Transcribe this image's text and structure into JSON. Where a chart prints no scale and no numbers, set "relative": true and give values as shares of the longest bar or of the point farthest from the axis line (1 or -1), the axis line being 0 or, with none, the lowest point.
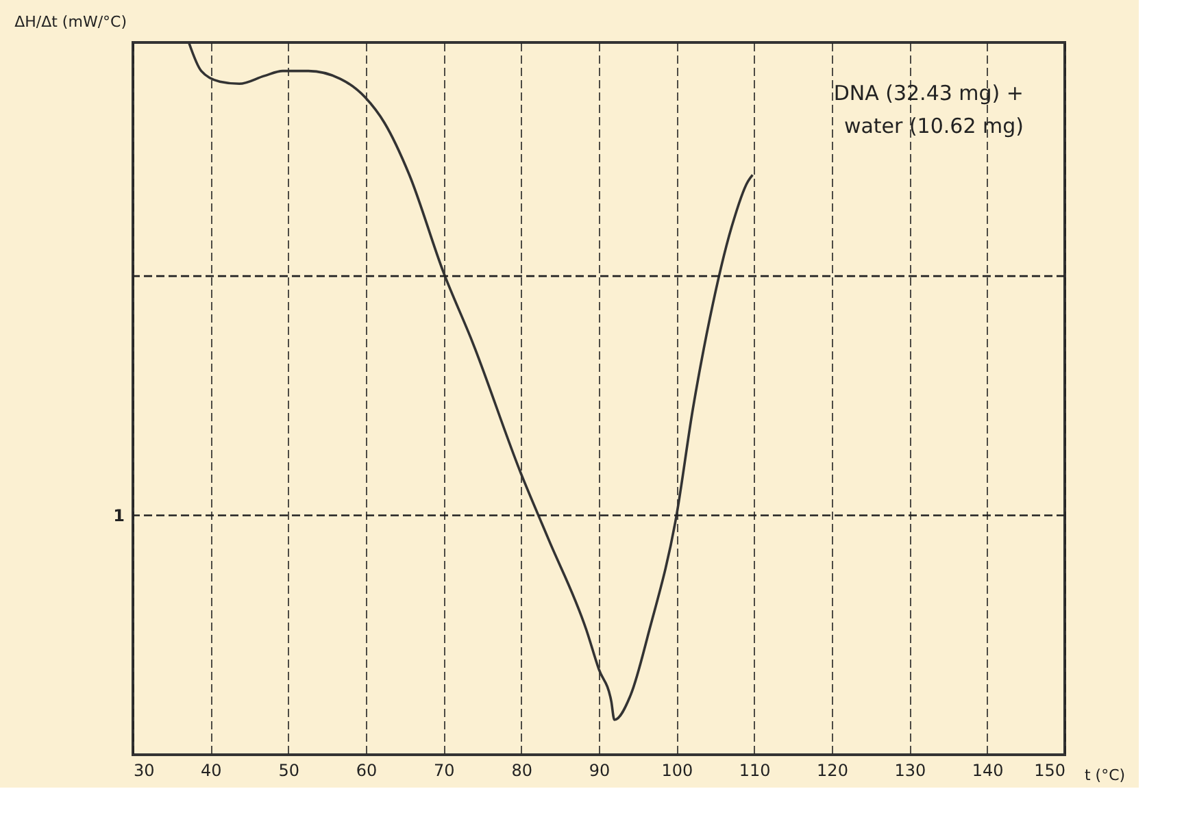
{
  "chart_data": {
    "type": "line",
    "relative": true,
    "xlabel": "t (°C)",
    "ylabel": "ΔH/Δt (mW/°C)",
    "annotations": [
      "DNA (32.43 mg) +",
      "water (10.62 mg)",
      "1"
    ],
    "xlim": [
      30,
      150
    ],
    "xticks": [
      30,
      40,
      50,
      60,
      70,
      80,
      90,
      100,
      110,
      120,
      130,
      140,
      150
    ],
    "grid": "x",
    "ref_lines": [
      {
        "axis": "y",
        "value": 0.672,
        "label": null,
        "line_style": "dashed"
      },
      {
        "axis": "y",
        "value": 0.336,
        "label": null,
        "line_style": "dashed"
      }
    ],
    "series": [
      {
        "color": "#333333",
        "x": [
          37.2,
          38.8,
          41.2,
          43.7,
          46.9,
          49.3,
          52.6,
          56.7,
          59.9,
          62.4,
          65.6,
          70,
          73.7,
          80,
          83.5,
          88.4,
          90,
          91.6,
          92.0,
          94.1,
          96.5,
          100,
          102.1,
          104.3,
          107.1,
          109.2,
          109.8
        ],
        "values": [
          1.0,
          0.96,
          0.945,
          0.942,
          0.953,
          0.96,
          0.96,
          0.949,
          0.923,
          0.887,
          0.814,
          0.677,
          0.58,
          0.394,
          0.303,
          0.175,
          0.12,
          0.075,
          0.049,
          0.084,
          0.175,
          0.336,
          0.485,
          0.613,
          0.741,
          0.805,
          0.814
        ]
      }
    ],
    "line_style": "solid",
    "marker": "none"
  }
}
